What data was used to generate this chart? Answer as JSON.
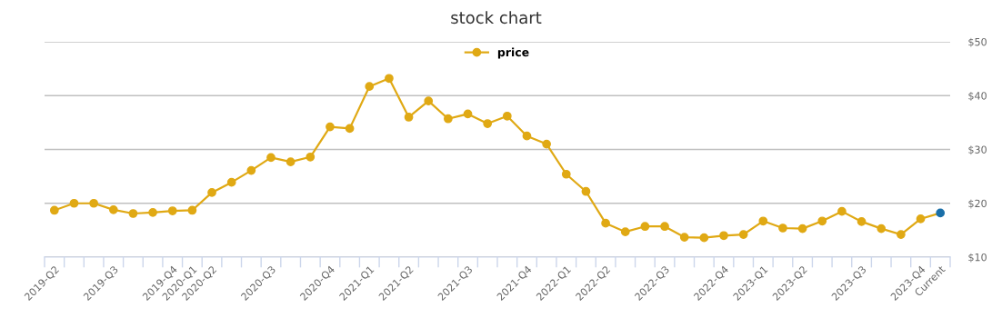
{
  "chart_data": {
    "type": "line",
    "title": "stock chart",
    "categories": [
      "2019-Q2",
      null,
      null,
      "2019-Q3",
      null,
      null,
      "2019-Q4",
      "2020-Q1",
      "2020-Q2",
      null,
      null,
      "2020-Q3",
      null,
      null,
      "2020-Q4",
      null,
      "2021-Q1",
      null,
      "2021-Q2",
      null,
      null,
      "2021-Q3",
      null,
      null,
      "2021-Q4",
      null,
      "2022-Q1",
      null,
      "2022-Q2",
      null,
      null,
      "2022-Q3",
      null,
      null,
      "2022-Q4",
      null,
      "2023-Q1",
      null,
      "2023-Q2",
      null,
      null,
      "2023-Q3",
      null,
      null,
      "2023-Q4",
      "Current"
    ],
    "series": [
      {
        "name": "price",
        "color": "#e0a914",
        "colors": [
          "#e0a914",
          "#e0a914",
          "#e0a914",
          "#e0a914",
          "#e0a914",
          "#e0a914",
          "#e0a914",
          "#e0a914",
          "#e0a914",
          "#e0a914",
          "#e0a914",
          "#e0a914",
          "#e0a914",
          "#e0a914",
          "#e0a914",
          "#e0a914",
          "#e0a914",
          "#e0a914",
          "#e0a914",
          "#e0a914",
          "#e0a914",
          "#e0a914",
          "#e0a914",
          "#e0a914",
          "#e0a914",
          "#e0a914",
          "#e0a914",
          "#e0a914",
          "#e0a914",
          "#e0a914",
          "#e0a914",
          "#e0a914",
          "#e0a914",
          "#e0a914",
          "#e0a914",
          "#e0a914",
          "#e0a914",
          "#e0a914",
          "#e0a914",
          "#e0a914",
          "#e0a914",
          "#e0a914",
          "#e0a914",
          "#e0a914",
          "#e0a914",
          "#1a6fa8"
        ],
        "values": [
          18.7,
          20.0,
          20.0,
          18.8,
          18.1,
          18.3,
          18.6,
          18.7,
          22.0,
          23.9,
          26.1,
          28.5,
          27.7,
          28.6,
          34.2,
          33.9,
          41.7,
          43.2,
          36.0,
          39.0,
          35.7,
          36.6,
          34.8,
          36.2,
          32.5,
          31.0,
          25.4,
          22.2,
          16.3,
          14.7,
          15.7,
          15.7,
          13.7,
          13.6,
          14.0,
          14.2,
          16.7,
          15.4,
          15.3,
          16.7,
          18.5,
          16.6,
          15.3,
          14.2,
          17.1,
          18.2
        ]
      }
    ],
    "ylim": [
      10,
      50
    ],
    "yticks": [
      {
        "value": 10,
        "label": "$10"
      },
      {
        "value": 20,
        "label": "$20"
      },
      {
        "value": 30,
        "label": "$30"
      },
      {
        "value": 40,
        "label": "$40"
      },
      {
        "value": 50,
        "label": "$50"
      }
    ],
    "grid": "y",
    "legend": "top",
    "marker": "circle",
    "line_style": "solid"
  }
}
